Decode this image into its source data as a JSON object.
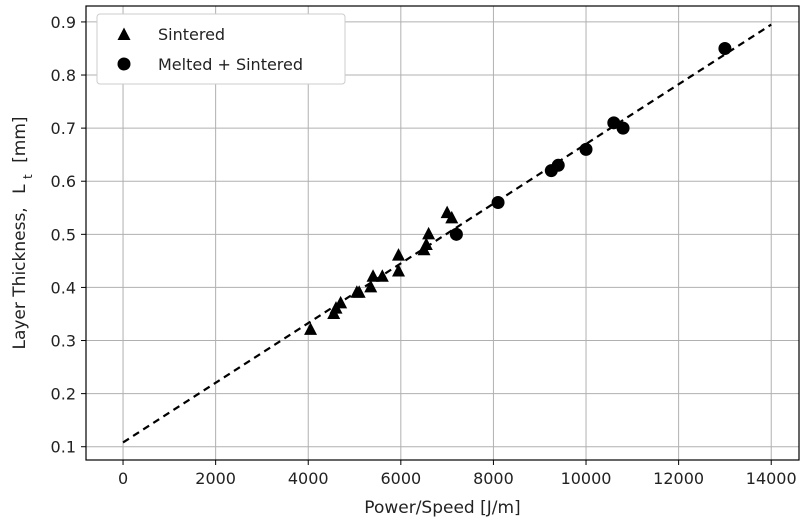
{
  "chart_data": {
    "type": "scatter",
    "xlabel": "Power/Speed [J/m]",
    "ylabel": "Layer Thickness,",
    "ylabel_symbol": "L",
    "ylabel_subscript": "t",
    "ylabel_unit": "[mm]",
    "xlim": [
      -800,
      14600
    ],
    "ylim": [
      0.075,
      0.93
    ],
    "xticks": [
      0,
      2000,
      4000,
      6000,
      8000,
      10000,
      12000,
      14000
    ],
    "yticks": [
      0.1,
      0.2,
      0.3,
      0.4,
      0.5,
      0.6,
      0.7,
      0.8,
      0.9
    ],
    "xtick_labels": [
      "0",
      "2000",
      "4000",
      "6000",
      "8000",
      "10000",
      "12000",
      "14000"
    ],
    "ytick_labels": [
      "0.1",
      "0.2",
      "0.3",
      "0.4",
      "0.5",
      "0.6",
      "0.7",
      "0.8",
      "0.9"
    ],
    "grid": true,
    "legend_position": "top-left",
    "series": [
      {
        "name": "Sintered",
        "marker": "triangle",
        "color": "#000000",
        "x": [
          4050,
          4550,
          4600,
          4700,
          5050,
          5100,
          5350,
          5400,
          5600,
          5950,
          5950,
          6500,
          6550,
          6600,
          7000,
          7100
        ],
        "y": [
          0.32,
          0.35,
          0.36,
          0.37,
          0.39,
          0.39,
          0.4,
          0.42,
          0.42,
          0.43,
          0.46,
          0.47,
          0.48,
          0.5,
          0.54,
          0.53
        ]
      },
      {
        "name": "Melted + Sintered",
        "marker": "circle",
        "color": "#000000",
        "x": [
          7200,
          8100,
          9250,
          9400,
          10000,
          10600,
          10800,
          13000
        ],
        "y": [
          0.5,
          0.56,
          0.62,
          0.63,
          0.66,
          0.71,
          0.7,
          0.85
        ]
      }
    ],
    "fit_line": {
      "style": "dashed",
      "color": "#000000",
      "x": [
        0,
        14000
      ],
      "y": [
        0.108,
        0.895
      ]
    }
  }
}
